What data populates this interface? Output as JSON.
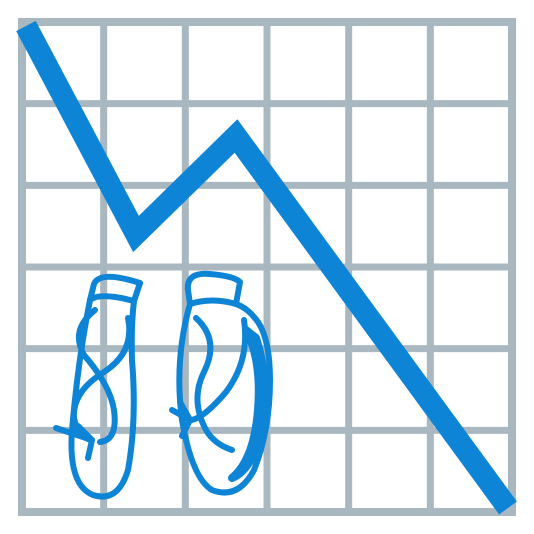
{
  "illustration": {
    "icon_name": "declining-line-chart-with-ballet-pointe-shoes-icon",
    "grid": {
      "columns": 6,
      "rows": 6
    },
    "trend": "declining",
    "colors": {
      "background": "#ffffff",
      "grid": "#a9b8c0",
      "line": "#0d84d6",
      "shoes": "#0d84d6"
    }
  }
}
